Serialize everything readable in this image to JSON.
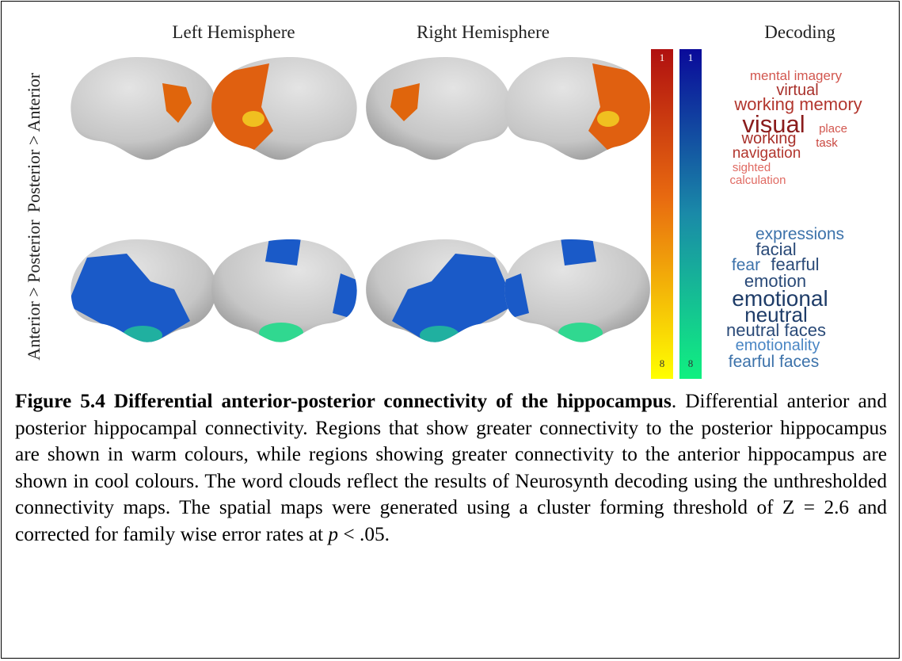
{
  "figure": {
    "column_headers": [
      "Left Hemisphere",
      "Right Hemisphere",
      "Decoding"
    ],
    "row_labels": [
      "Posterior > Anterior",
      "Anterior > Posterior"
    ],
    "colorbars": [
      {
        "top": 1,
        "bottom": 8
      },
      {
        "top": 1,
        "bottom": 8
      }
    ],
    "word_clouds": [
      {
        "words": [
          "mental imagery",
          "virtual",
          "working memory",
          "visual",
          "place",
          "working",
          "task",
          "navigation",
          "sighted",
          "calculation"
        ]
      },
      {
        "words": [
          "expressions",
          "facial",
          "fear",
          "fearful",
          "emotion",
          "emotional",
          "neutral",
          "neutral faces",
          "emotionality",
          "fearful faces"
        ]
      }
    ]
  },
  "caption": {
    "title": "Figure 5.4 Differential anterior-posterior connectivity of the hippocampus",
    "body": ". Differential anterior and posterior hippocampal connectivity. Regions that show greater connectivity to the posterior hippocampus are shown in warm colours, while regions showing greater connectivity to the anterior hippocampus are shown in cool colours. The word clouds reflect the results of Neurosynth decoding using the unthresholded connectivity maps. The spatial maps were generated using a cluster forming threshold of Z = 2.6 and corrected for family wise error rates at ",
    "italic": "p",
    "end": " < .05."
  }
}
